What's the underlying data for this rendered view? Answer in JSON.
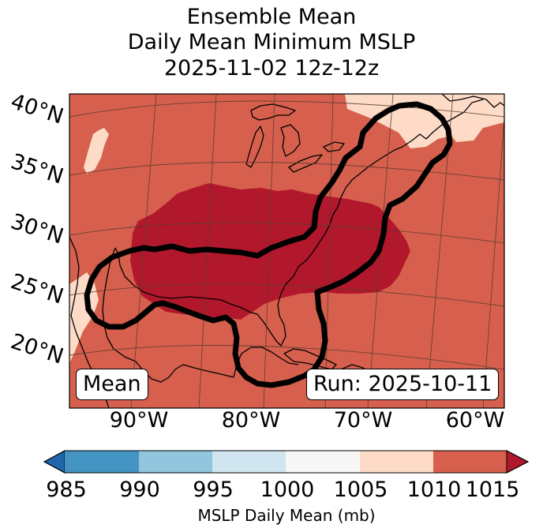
{
  "title_lines": [
    "Ensemble Mean",
    "Daily Mean Minimum MSLP",
    "2025-11-02 12z-12z"
  ],
  "lat_labels": [
    "40°N",
    "35°N",
    "30°N",
    "25°N",
    "20°N"
  ],
  "lon_labels": [
    "90°W",
    "80°W",
    "70°W",
    "60°W"
  ],
  "left_badge": "Mean",
  "right_badge": "Run: 2025-10-11",
  "colorbar": {
    "label": "MSLP Daily Mean (mb)",
    "ticks": [
      "985",
      "990",
      "995",
      "1000",
      "1005",
      "1010",
      "1015"
    ],
    "colors": {
      "under": "#2166ac",
      "985-990": "#4393c3",
      "990-995": "#92c5de",
      "995-1000": "#d1e5f0",
      "1000-1005": "#f7f7f7",
      "1005-1010": "#fddbc7",
      "1010-1015": "#d6604d",
      "over": "#b2182b"
    }
  },
  "map_fill": {
    "background_class": "1010-1015",
    "core_class": "over",
    "light_patches_class": "1005-1010"
  },
  "outline_color": "#000000"
}
